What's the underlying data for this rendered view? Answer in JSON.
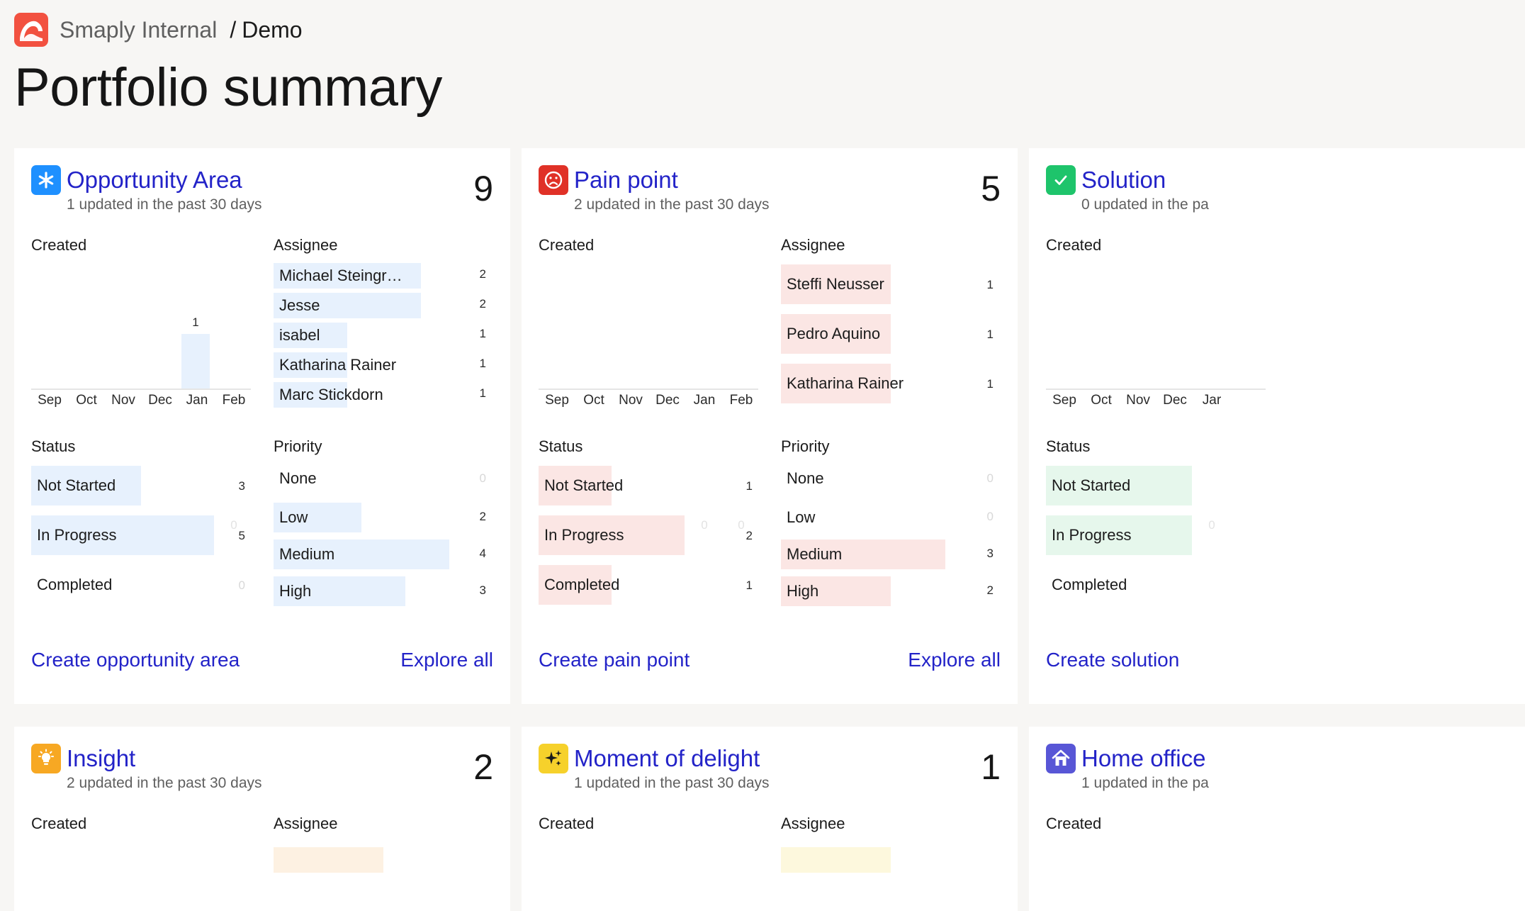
{
  "breadcrumb": {
    "org": "Smaply Internal",
    "separator": "/",
    "page": "Demo"
  },
  "page_title": "Portfolio summary",
  "labels": {
    "created": "Created",
    "assignee": "Assignee",
    "status": "Status",
    "priority": "Priority",
    "explore_all": "Explore all"
  },
  "months": [
    "Sep",
    "Oct",
    "Nov",
    "Dec",
    "Jan",
    "Feb"
  ],
  "cards": [
    {
      "name": "Opportunity Area",
      "icon": "asterisk-icon",
      "icon_color": "#1e90ff",
      "updated": "1 updated in the past 30 days",
      "count": "9",
      "bar_color": "#e7f1fd",
      "created": [
        0,
        0,
        0,
        0,
        1,
        0
      ],
      "assignees": [
        {
          "name": "Michael Steingr…",
          "value": 2
        },
        {
          "name": "Jesse",
          "value": 2
        },
        {
          "name": "isabel",
          "value": 1
        },
        {
          "name": "Katharina Rainer",
          "value": 1
        },
        {
          "name": "Marc Stickdorn",
          "value": 1
        }
      ],
      "status": [
        {
          "label": "Not Started",
          "value": 3
        },
        {
          "label": "In Progress",
          "value": 5
        },
        {
          "label": "Completed",
          "value": 0
        }
      ],
      "priority": [
        {
          "label": "None",
          "value": 0
        },
        {
          "label": "Low",
          "value": 2
        },
        {
          "label": "Medium",
          "value": 4
        },
        {
          "label": "High",
          "value": 3
        }
      ],
      "create_label": "Create opportunity area"
    },
    {
      "name": "Pain point",
      "icon": "sad-face-icon",
      "icon_color": "#e03127",
      "updated": "2 updated in the past 30 days",
      "count": "5",
      "bar_color": "#fbe6e4",
      "created": [
        0,
        0,
        0,
        0,
        0,
        0
      ],
      "assignees": [
        {
          "name": "Steffi Neusser",
          "value": 1
        },
        {
          "name": "Pedro Aquino",
          "value": 1
        },
        {
          "name": "Katharina Rainer",
          "value": 1
        }
      ],
      "status": [
        {
          "label": "Not Started",
          "value": 1
        },
        {
          "label": "In Progress",
          "value": 2
        },
        {
          "label": "Completed",
          "value": 1
        }
      ],
      "priority": [
        {
          "label": "None",
          "value": 0
        },
        {
          "label": "Low",
          "value": 0
        },
        {
          "label": "Medium",
          "value": 3
        },
        {
          "label": "High",
          "value": 2
        }
      ],
      "create_label": "Create pain point"
    },
    {
      "name": "Solution",
      "icon": "checkmark-icon",
      "icon_color": "#1ec46b",
      "updated": "0 updated in the pa",
      "count": "",
      "bar_color": "#e6f7ec",
      "created": [
        0,
        0,
        0,
        0,
        0
      ],
      "months_visible": [
        "Sep",
        "Oct",
        "Nov",
        "Dec",
        "Jar"
      ],
      "status": [
        {
          "label": "Not Started"
        },
        {
          "label": "In Progress"
        },
        {
          "label": "Completed"
        }
      ],
      "create_label": "Create solution"
    }
  ],
  "cards_row2": [
    {
      "name": "Insight",
      "icon": "lightbulb-icon",
      "icon_color": "#f7a823",
      "updated": "2 updated in the past 30 days",
      "count": "2"
    },
    {
      "name": "Moment of delight",
      "icon": "sparkles-icon",
      "icon_color": "#f6d12b",
      "updated": "1 updated in the past 30 days",
      "count": "1"
    },
    {
      "name": "Home office",
      "icon": "home-icon",
      "icon_color": "#5856d6",
      "updated": "1 updated in the pa",
      "count": ""
    }
  ]
}
